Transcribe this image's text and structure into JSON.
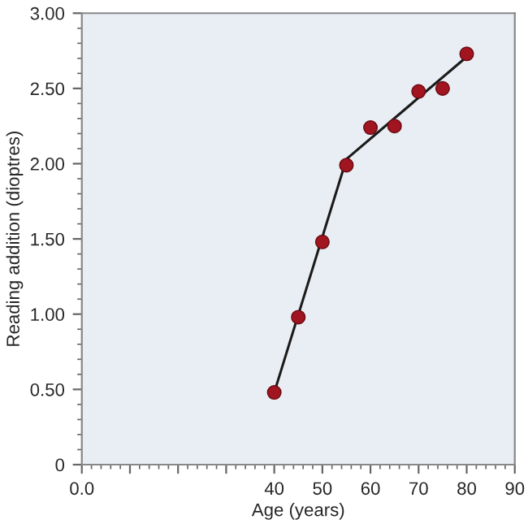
{
  "chart_data": {
    "type": "scatter",
    "xlabel": "Age (years)",
    "ylabel": "Reading addition (dioptres)",
    "series": [
      {
        "type": "line",
        "color": "#1a1a1a",
        "x": [
          40,
          55,
          80
        ],
        "values": [
          0.48,
          2.03,
          2.71
        ],
        "marker": "none",
        "line_style": "solid"
      },
      {
        "color": "#a01520",
        "x": [
          40,
          45,
          50,
          55,
          60,
          65,
          70,
          75,
          80
        ],
        "values": [
          0.48,
          0.98,
          1.48,
          1.99,
          2.24,
          2.25,
          2.48,
          2.5,
          2.73
        ],
        "marker": "circle"
      }
    ],
    "xlim": [
      0,
      90
    ],
    "xticks": [
      {
        "value": 0,
        "label": "0.0"
      },
      {
        "value": 10,
        "label": null
      },
      {
        "value": 20,
        "label": null
      },
      {
        "value": 30,
        "label": null
      },
      40,
      50,
      60,
      70,
      80,
      90
    ],
    "ylim": [
      0,
      3
    ],
    "yticks": [
      0,
      {
        "value": 0.5,
        "label": "0.50"
      },
      {
        "value": 1,
        "label": "1.00"
      },
      {
        "value": 1.5,
        "label": "1.50"
      },
      {
        "value": 2,
        "label": "2.00"
      },
      {
        "value": 2.5,
        "label": "2.50"
      },
      {
        "value": 3,
        "label": "3.00"
      }
    ],
    "grid": false,
    "legend": false
  }
}
